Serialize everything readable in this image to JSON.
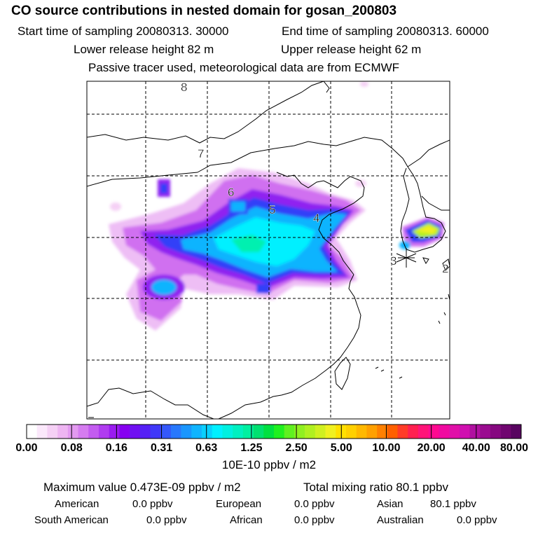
{
  "header": {
    "title": "CO  source contributions in nested domain for gosan_200803",
    "start_time": "Start time of sampling 20080313. 30000",
    "end_time": "End time of sampling 20080313. 60000",
    "lower_height": "Lower release height   82 m",
    "upper_height": "Upper release height   62 m",
    "tracer_note": "Passive tracer used, meteorological data are from ECMWF"
  },
  "map": {
    "trajectory_labels": [
      "8",
      "7",
      "6",
      "5",
      "4",
      "3",
      "2"
    ],
    "receptor_marker": "star-icon"
  },
  "colorbar": {
    "ticks": [
      "0.00",
      "0.08",
      "0.16",
      "0.31",
      "0.63",
      "1.25",
      "2.50",
      "5.00",
      "10.00",
      "20.00",
      "40.00",
      "80.00"
    ],
    "units": "10E-10 ppbv / m2",
    "colors": [
      "#ffffff",
      "#fbe8fb",
      "#f5d0f5",
      "#eeb5f2",
      "#e39af0",
      "#d57cf0",
      "#c35cf0",
      "#b03cf0",
      "#9a1cf0",
      "#8600f0",
      "#7010f2",
      "#5520f5",
      "#4038f8",
      "#3458fa",
      "#2878fc",
      "#1a96fd",
      "#10b4fe",
      "#08d0fe",
      "#00f0ff",
      "#00f0e0",
      "#00f0c0",
      "#00f0a0",
      "#00e070",
      "#00e040",
      "#20f020",
      "#60f020",
      "#90f020",
      "#b0f020",
      "#d0f020",
      "#f0f020",
      "#ffe000",
      "#ffd000",
      "#ffb800",
      "#ffa000",
      "#ff8000",
      "#ff6000",
      "#ff3c28",
      "#ff2050",
      "#ff1478",
      "#ff0a90",
      "#f00aa0",
      "#e010a8",
      "#d010b0",
      "#b010a0",
      "#9a0c90",
      "#860880",
      "#700670",
      "#580460"
    ]
  },
  "stats": {
    "max_value": "Maximum value  0.473E-09 ppbv / m2",
    "total": "Total mixing ratio       80.1 ppbv",
    "american_label": "American",
    "american_value": "0.0 ppbv",
    "european_label": "European",
    "european_value": "0.0 ppbv",
    "asian_label": "Asian",
    "asian_value": "80.1 ppbv",
    "south_american_label": "South American",
    "south_american_value": "0.0 ppbv",
    "african_label": "African",
    "african_value": "0.0 ppbv",
    "australian_label": "Australian",
    "australian_value": "0.0 ppbv"
  }
}
